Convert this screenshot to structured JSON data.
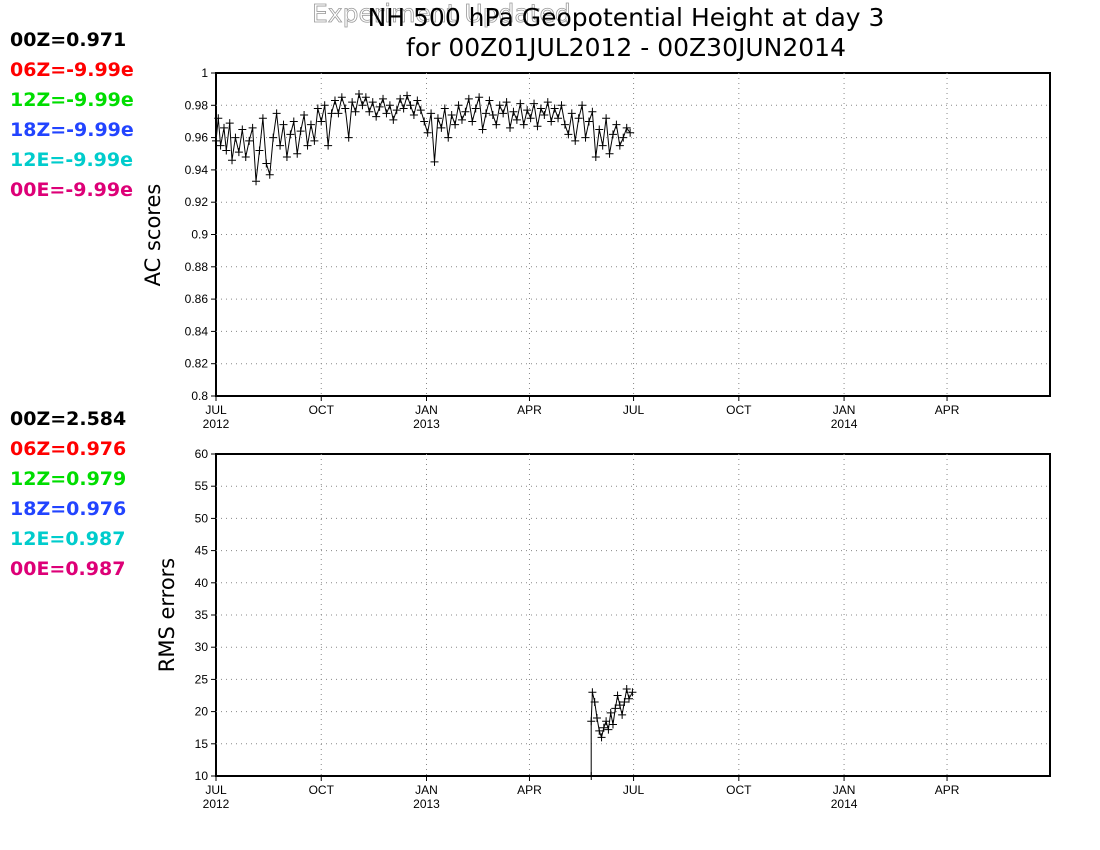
{
  "title": {
    "line1": "NH 500 hPa Geopotential Height at day 3",
    "line2": "for 00Z01JUL2012 - 00Z30JUN2014",
    "overlay": "Experiment Updated"
  },
  "colors": {
    "00Z": "#000000",
    "06Z": "#ff0000",
    "12Z": "#00dd00",
    "18Z": "#2244ff",
    "12E": "#00cccc",
    "00E": "#dd0077"
  },
  "ac_stats": [
    {
      "key": "00Z",
      "text": "00Z=0.971"
    },
    {
      "key": "06Z",
      "text": "06Z=-9.99e"
    },
    {
      "key": "12Z",
      "text": "12Z=-9.99e"
    },
    {
      "key": "18Z",
      "text": "18Z=-9.99e"
    },
    {
      "key": "12E",
      "text": "12E=-9.99e"
    },
    {
      "key": "00E",
      "text": "00E=-9.99e"
    }
  ],
  "rms_stats": [
    {
      "key": "00Z",
      "text": "00Z=2.584"
    },
    {
      "key": "06Z",
      "text": "06Z=0.976"
    },
    {
      "key": "12Z",
      "text": "12Z=0.979"
    },
    {
      "key": "18Z",
      "text": "18Z=0.976"
    },
    {
      "key": "12E",
      "text": "12E=0.987"
    },
    {
      "key": "00E",
      "text": "00E=0.987"
    }
  ],
  "chart_data": [
    {
      "type": "line",
      "name": "ac",
      "ylabel": "AC scores",
      "xlim": [
        "2012-07-01",
        "2014-06-30"
      ],
      "ylim": [
        0.8,
        1
      ],
      "yticks": [
        0.8,
        0.82,
        0.84,
        0.86,
        0.88,
        0.9,
        0.92,
        0.94,
        0.96,
        0.98,
        1
      ],
      "ytick_labels": [
        "0.8",
        "0.82",
        "0.84",
        "0.86",
        "0.88",
        "0.9",
        "0.92",
        "0.94",
        "0.96",
        "0.98",
        "1"
      ],
      "xticks": [
        {
          "date": "2012-07-01",
          "label": "JUL",
          "sub": "2012"
        },
        {
          "date": "2012-10-01",
          "label": "OCT",
          "sub": ""
        },
        {
          "date": "2013-01-01",
          "label": "JAN",
          "sub": "2013"
        },
        {
          "date": "2013-04-01",
          "label": "APR",
          "sub": ""
        },
        {
          "date": "2013-07-01",
          "label": "JUL",
          "sub": ""
        },
        {
          "date": "2013-10-01",
          "label": "OCT",
          "sub": ""
        },
        {
          "date": "2014-01-01",
          "label": "JAN",
          "sub": "2014"
        },
        {
          "date": "2014-04-01",
          "label": "APR",
          "sub": ""
        }
      ],
      "grid": true,
      "series": [
        {
          "key": "00Z",
          "marker": "+",
          "points": [
            [
              "2012-07-01",
              0.958
            ],
            [
              "2012-07-03",
              0.972
            ],
            [
              "2012-07-05",
              0.955
            ],
            [
              "2012-07-08",
              0.966
            ],
            [
              "2012-07-10",
              0.952
            ],
            [
              "2012-07-13",
              0.969
            ],
            [
              "2012-07-15",
              0.946
            ],
            [
              "2012-07-18",
              0.96
            ],
            [
              "2012-07-21",
              0.951
            ],
            [
              "2012-07-24",
              0.965
            ],
            [
              "2012-07-27",
              0.948
            ],
            [
              "2012-07-30",
              0.958
            ],
            [
              "2012-08-02",
              0.966
            ],
            [
              "2012-08-05",
              0.933
            ],
            [
              "2012-08-08",
              0.952
            ],
            [
              "2012-08-11",
              0.972
            ],
            [
              "2012-08-14",
              0.944
            ],
            [
              "2012-08-17",
              0.937
            ],
            [
              "2012-08-20",
              0.96
            ],
            [
              "2012-08-23",
              0.975
            ],
            [
              "2012-08-26",
              0.955
            ],
            [
              "2012-08-29",
              0.968
            ],
            [
              "2012-09-01",
              0.948
            ],
            [
              "2012-09-04",
              0.962
            ],
            [
              "2012-09-07",
              0.97
            ],
            [
              "2012-09-10",
              0.95
            ],
            [
              "2012-09-13",
              0.964
            ],
            [
              "2012-09-16",
              0.974
            ],
            [
              "2012-09-19",
              0.955
            ],
            [
              "2012-09-22",
              0.968
            ],
            [
              "2012-09-25",
              0.958
            ],
            [
              "2012-09-28",
              0.978
            ],
            [
              "2012-10-01",
              0.97
            ],
            [
              "2012-10-04",
              0.98
            ],
            [
              "2012-10-07",
              0.955
            ],
            [
              "2012-10-10",
              0.975
            ],
            [
              "2012-10-13",
              0.983
            ],
            [
              "2012-10-16",
              0.975
            ],
            [
              "2012-10-19",
              0.985
            ],
            [
              "2012-10-22",
              0.978
            ],
            [
              "2012-10-25",
              0.96
            ],
            [
              "2012-10-28",
              0.982
            ],
            [
              "2012-10-31",
              0.976
            ],
            [
              "2012-11-03",
              0.987
            ],
            [
              "2012-11-06",
              0.98
            ],
            [
              "2012-11-09",
              0.985
            ],
            [
              "2012-11-12",
              0.976
            ],
            [
              "2012-11-15",
              0.982
            ],
            [
              "2012-11-18",
              0.973
            ],
            [
              "2012-11-21",
              0.979
            ],
            [
              "2012-11-24",
              0.984
            ],
            [
              "2012-11-27",
              0.975
            ],
            [
              "2012-11-30",
              0.98
            ],
            [
              "2012-12-03",
              0.971
            ],
            [
              "2012-12-06",
              0.977
            ],
            [
              "2012-12-09",
              0.984
            ],
            [
              "2012-12-12",
              0.978
            ],
            [
              "2012-12-15",
              0.986
            ],
            [
              "2012-12-18",
              0.98
            ],
            [
              "2012-12-21",
              0.974
            ],
            [
              "2012-12-24",
              0.983
            ],
            [
              "2012-12-27",
              0.977
            ],
            [
              "2012-12-30",
              0.97
            ],
            [
              "2013-01-02",
              0.963
            ],
            [
              "2013-01-05",
              0.975
            ],
            [
              "2013-01-08",
              0.945
            ],
            [
              "2013-01-11",
              0.972
            ],
            [
              "2013-01-14",
              0.966
            ],
            [
              "2013-01-17",
              0.978
            ],
            [
              "2013-01-20",
              0.96
            ],
            [
              "2013-01-23",
              0.974
            ],
            [
              "2013-01-26",
              0.968
            ],
            [
              "2013-01-29",
              0.98
            ],
            [
              "2013-02-01",
              0.971
            ],
            [
              "2013-02-04",
              0.976
            ],
            [
              "2013-02-07",
              0.984
            ],
            [
              "2013-02-10",
              0.97
            ],
            [
              "2013-02-13",
              0.978
            ],
            [
              "2013-02-16",
              0.985
            ],
            [
              "2013-02-19",
              0.965
            ],
            [
              "2013-02-22",
              0.975
            ],
            [
              "2013-02-25",
              0.983
            ],
            [
              "2013-02-28",
              0.974
            ],
            [
              "2013-03-03",
              0.968
            ],
            [
              "2013-03-06",
              0.98
            ],
            [
              "2013-03-09",
              0.975
            ],
            [
              "2013-03-12",
              0.982
            ],
            [
              "2013-03-15",
              0.966
            ],
            [
              "2013-03-18",
              0.976
            ],
            [
              "2013-03-21",
              0.971
            ],
            [
              "2013-03-24",
              0.981
            ],
            [
              "2013-03-27",
              0.968
            ],
            [
              "2013-03-30",
              0.977
            ],
            [
              "2013-04-02",
              0.972
            ],
            [
              "2013-04-05",
              0.981
            ],
            [
              "2013-04-08",
              0.967
            ],
            [
              "2013-04-11",
              0.978
            ],
            [
              "2013-04-14",
              0.974
            ],
            [
              "2013-04-17",
              0.982
            ],
            [
              "2013-04-20",
              0.97
            ],
            [
              "2013-04-23",
              0.978
            ],
            [
              "2013-04-26",
              0.972
            ],
            [
              "2013-04-29",
              0.98
            ],
            [
              "2013-05-02",
              0.968
            ],
            [
              "2013-05-05",
              0.962
            ],
            [
              "2013-05-08",
              0.975
            ],
            [
              "2013-05-11",
              0.958
            ],
            [
              "2013-05-14",
              0.972
            ],
            [
              "2013-05-17",
              0.98
            ],
            [
              "2013-05-20",
              0.96
            ],
            [
              "2013-05-23",
              0.97
            ],
            [
              "2013-05-26",
              0.976
            ],
            [
              "2013-05-29",
              0.948
            ],
            [
              "2013-06-01",
              0.965
            ],
            [
              "2013-06-04",
              0.955
            ],
            [
              "2013-06-07",
              0.972
            ],
            [
              "2013-06-10",
              0.95
            ],
            [
              "2013-06-13",
              0.962
            ],
            [
              "2013-06-16",
              0.968
            ],
            [
              "2013-06-19",
              0.955
            ],
            [
              "2013-06-22",
              0.96
            ],
            [
              "2013-06-25",
              0.966
            ],
            [
              "2013-06-28",
              0.963
            ]
          ]
        }
      ]
    },
    {
      "type": "line",
      "name": "rms",
      "ylabel": "RMS errors",
      "xlim": [
        "2012-07-01",
        "2014-06-30"
      ],
      "ylim": [
        10,
        60
      ],
      "yticks": [
        10,
        15,
        20,
        25,
        30,
        35,
        40,
        45,
        50,
        55,
        60
      ],
      "ytick_labels": [
        "10",
        "15",
        "20",
        "25",
        "30",
        "35",
        "40",
        "45",
        "50",
        "55",
        "60"
      ],
      "xticks": [
        {
          "date": "2012-07-01",
          "label": "JUL",
          "sub": "2012"
        },
        {
          "date": "2012-10-01",
          "label": "OCT",
          "sub": ""
        },
        {
          "date": "2013-01-01",
          "label": "JAN",
          "sub": "2013"
        },
        {
          "date": "2013-04-01",
          "label": "APR",
          "sub": ""
        },
        {
          "date": "2013-07-01",
          "label": "JUL",
          "sub": ""
        },
        {
          "date": "2013-10-01",
          "label": "OCT",
          "sub": ""
        },
        {
          "date": "2014-01-01",
          "label": "JAN",
          "sub": "2014"
        },
        {
          "date": "2014-04-01",
          "label": "APR",
          "sub": ""
        }
      ],
      "grid": true,
      "series": [
        {
          "key": "00Z",
          "marker": "+",
          "points": [
            [
              "2013-05-25",
              10
            ],
            [
              "2013-05-25",
              18.5
            ],
            [
              "2013-05-26",
              23.0
            ],
            [
              "2013-05-28",
              21.5
            ],
            [
              "2013-05-30",
              19.0
            ],
            [
              "2013-06-01",
              17.0
            ],
            [
              "2013-06-03",
              16.0
            ],
            [
              "2013-06-05",
              17.5
            ],
            [
              "2013-06-07",
              18.5
            ],
            [
              "2013-06-09",
              17.2
            ],
            [
              "2013-06-11",
              19.8
            ],
            [
              "2013-06-13",
              18.0
            ],
            [
              "2013-06-15",
              20.5
            ],
            [
              "2013-06-17",
              22.5
            ],
            [
              "2013-06-19",
              21.0
            ],
            [
              "2013-06-21",
              19.5
            ],
            [
              "2013-06-23",
              21.5
            ],
            [
              "2013-06-25",
              23.5
            ],
            [
              "2013-06-27",
              22.0
            ],
            [
              "2013-06-30",
              23.0
            ]
          ]
        }
      ]
    }
  ]
}
